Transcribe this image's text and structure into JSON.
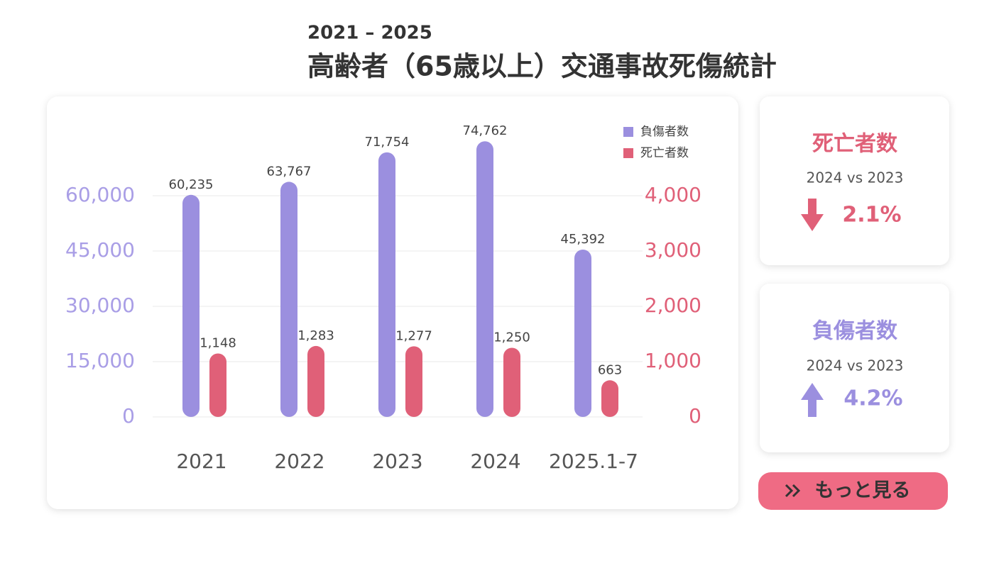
{
  "chart_data": {
    "type": "bar",
    "subtitle": "2021 – 2025",
    "title": "高齢者（65歳以上）交通事故死傷統計",
    "categories": [
      "2021",
      "2022",
      "2023",
      "2024",
      "2025.1-7"
    ],
    "series": [
      {
        "name": "負傷者数",
        "color": "#9b8fdf",
        "values": [
          60235,
          63767,
          71754,
          74762,
          45392
        ],
        "value_labels": [
          "60,235",
          "63,767",
          "71,754",
          "74,762",
          "45,392"
        ]
      },
      {
        "name": "死亡者数",
        "color": "#e06078",
        "axis": "y2",
        "values": [
          1148,
          1283,
          1277,
          1250,
          663
        ],
        "value_labels": [
          "1,148",
          "1,283",
          "1,277",
          "1,250",
          "663"
        ]
      }
    ],
    "ylim": [
      0,
      75000
    ],
    "yticks": [
      0,
      {
        "value": 15000,
        "label": "15,000"
      },
      {
        "value": 30000,
        "label": "30,000"
      },
      {
        "value": 45000,
        "label": "45,000"
      },
      {
        "value": 60000,
        "label": "60,000"
      }
    ],
    "y2lim": [
      0,
      5000
    ],
    "y2ticks": [
      0,
      {
        "value": 1000,
        "label": "1,000"
      },
      {
        "value": 2000,
        "label": "2,000"
      },
      {
        "value": 3000,
        "label": "3,000"
      },
      {
        "value": 4000,
        "label": "4,000"
      }
    ],
    "grid": true,
    "legend": "top-right"
  },
  "cards": [
    {
      "title": "死亡者数",
      "compare": "2024 vs 2023",
      "change": "2.1%"
    },
    {
      "title": "負傷者数",
      "compare": "2024 vs 2023",
      "change": "4.2%"
    }
  ],
  "button": {
    "label": "もっと見る"
  }
}
